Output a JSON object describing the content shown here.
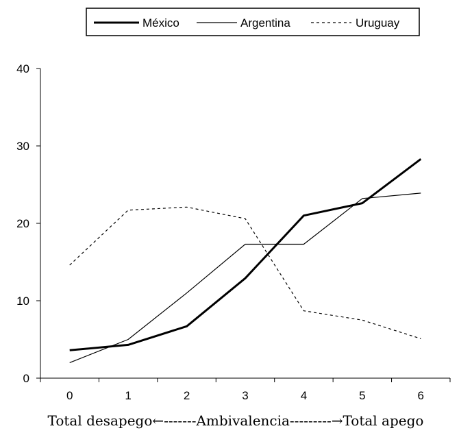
{
  "chart_data": {
    "type": "line",
    "title": "",
    "xlabel": "Total desapego←-------Ambivalencia---------→Total apego",
    "ylabel": "",
    "x": [
      0,
      1,
      2,
      3,
      4,
      5,
      6
    ],
    "categories": [
      "0",
      "1",
      "2",
      "3",
      "4",
      "5",
      "6"
    ],
    "ylim": [
      0,
      40
    ],
    "yticks": [
      0,
      10,
      20,
      30,
      40
    ],
    "grid": false,
    "legend_position": "top",
    "series": [
      {
        "name": "México",
        "values": [
          3.6,
          4.3,
          6.7,
          12.9,
          21.0,
          22.6,
          28.3
        ],
        "style": "solid-thick",
        "color": "#000000"
      },
      {
        "name": "Argentina",
        "values": [
          2.0,
          5.0,
          11.0,
          17.3,
          17.3,
          23.2,
          23.9
        ],
        "style": "solid-thin",
        "color": "#000000"
      },
      {
        "name": "Uruguay",
        "values": [
          14.6,
          21.7,
          22.1,
          20.6,
          8.7,
          7.5,
          5.1
        ],
        "style": "dashed",
        "color": "#000000"
      }
    ]
  }
}
